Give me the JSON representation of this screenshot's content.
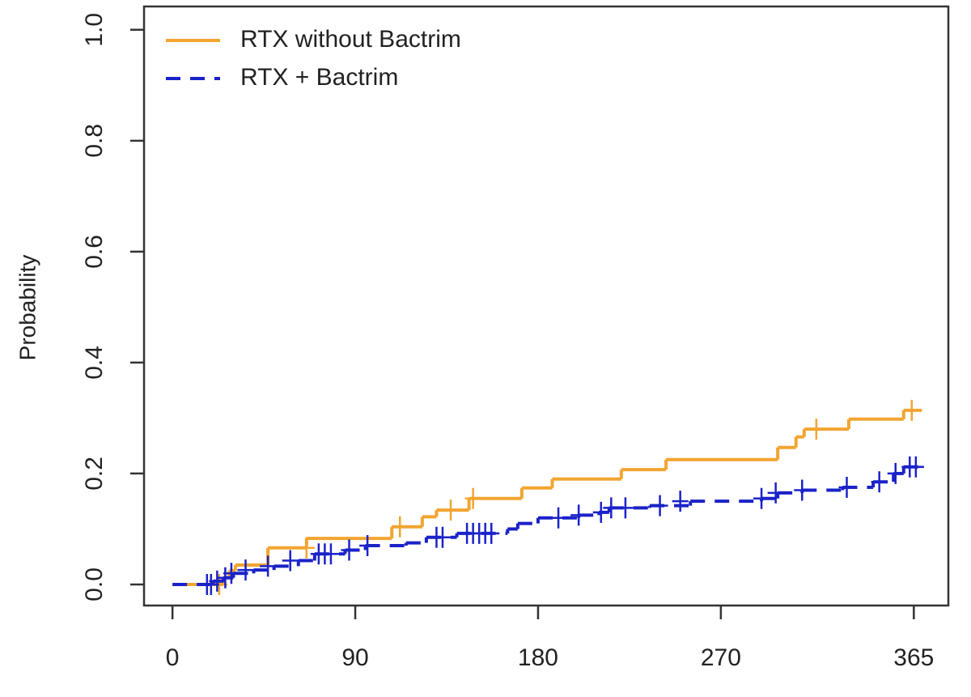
{
  "chart_data": {
    "type": "step",
    "ylabel": "Probability",
    "xlim": [
      -14,
      382
    ],
    "ylim": [
      -0.038,
      1.042
    ],
    "xticks": [
      0,
      90,
      180,
      270,
      365
    ],
    "yticks": [
      {
        "value": 0,
        "label": "0.0"
      },
      0.2,
      0.4,
      0.6,
      0.8,
      {
        "value": 1,
        "label": "1.0"
      }
    ],
    "legend": "top-left",
    "series": [
      {
        "name": "RTX without Bactrim",
        "color": "#f2a531",
        "dash": false,
        "x": [
          5,
          25,
          28,
          31,
          47,
          66,
          108,
          123,
          130,
          146,
          172,
          187,
          221,
          243,
          298,
          307,
          311,
          333,
          360,
          369
        ],
        "values": [
          0,
          0.012,
          0.025,
          0.035,
          0.066,
          0.083,
          0.104,
          0.122,
          0.134,
          0.155,
          0.174,
          0.19,
          0.207,
          0.225,
          0.247,
          0.266,
          0.28,
          0.298,
          0.314,
          0.314
        ],
        "censor_x": [
          23,
          66,
          112,
          137,
          148,
          317,
          364
        ],
        "censor_values": [
          0,
          0.066,
          0.104,
          0.134,
          0.155,
          0.28,
          0.314
        ]
      },
      {
        "name": "RTX + Bactrim",
        "color": "#1a22c8",
        "dash": true,
        "x": [
          0,
          20,
          25,
          30,
          40,
          50,
          62,
          70,
          85,
          95,
          115,
          125,
          140,
          165,
          170,
          180,
          200,
          210,
          215,
          235,
          255,
          290,
          298,
          310,
          330,
          345,
          355,
          360,
          369
        ],
        "values": [
          0,
          0.006,
          0.012,
          0.02,
          0.026,
          0.033,
          0.043,
          0.055,
          0.062,
          0.07,
          0.075,
          0.085,
          0.092,
          0.1,
          0.11,
          0.12,
          0.125,
          0.13,
          0.138,
          0.142,
          0.15,
          0.155,
          0.165,
          0.17,
          0.175,
          0.185,
          0.2,
          0.212,
          0.212
        ],
        "censor_x": [
          17,
          19,
          22,
          26,
          29,
          36,
          47,
          58,
          72,
          75,
          78,
          87,
          96,
          130,
          133,
          145,
          148,
          151,
          154,
          157,
          190,
          200,
          211,
          216,
          223,
          240,
          250,
          290,
          297,
          310,
          332,
          348,
          356,
          363,
          366
        ],
        "censor_values": [
          0,
          0,
          0.006,
          0.012,
          0.02,
          0.026,
          0.033,
          0.043,
          0.055,
          0.055,
          0.055,
          0.062,
          0.07,
          0.085,
          0.085,
          0.092,
          0.092,
          0.092,
          0.092,
          0.092,
          0.12,
          0.125,
          0.13,
          0.138,
          0.138,
          0.142,
          0.15,
          0.155,
          0.165,
          0.17,
          0.175,
          0.185,
          0.2,
          0.212,
          0.212
        ]
      }
    ]
  }
}
